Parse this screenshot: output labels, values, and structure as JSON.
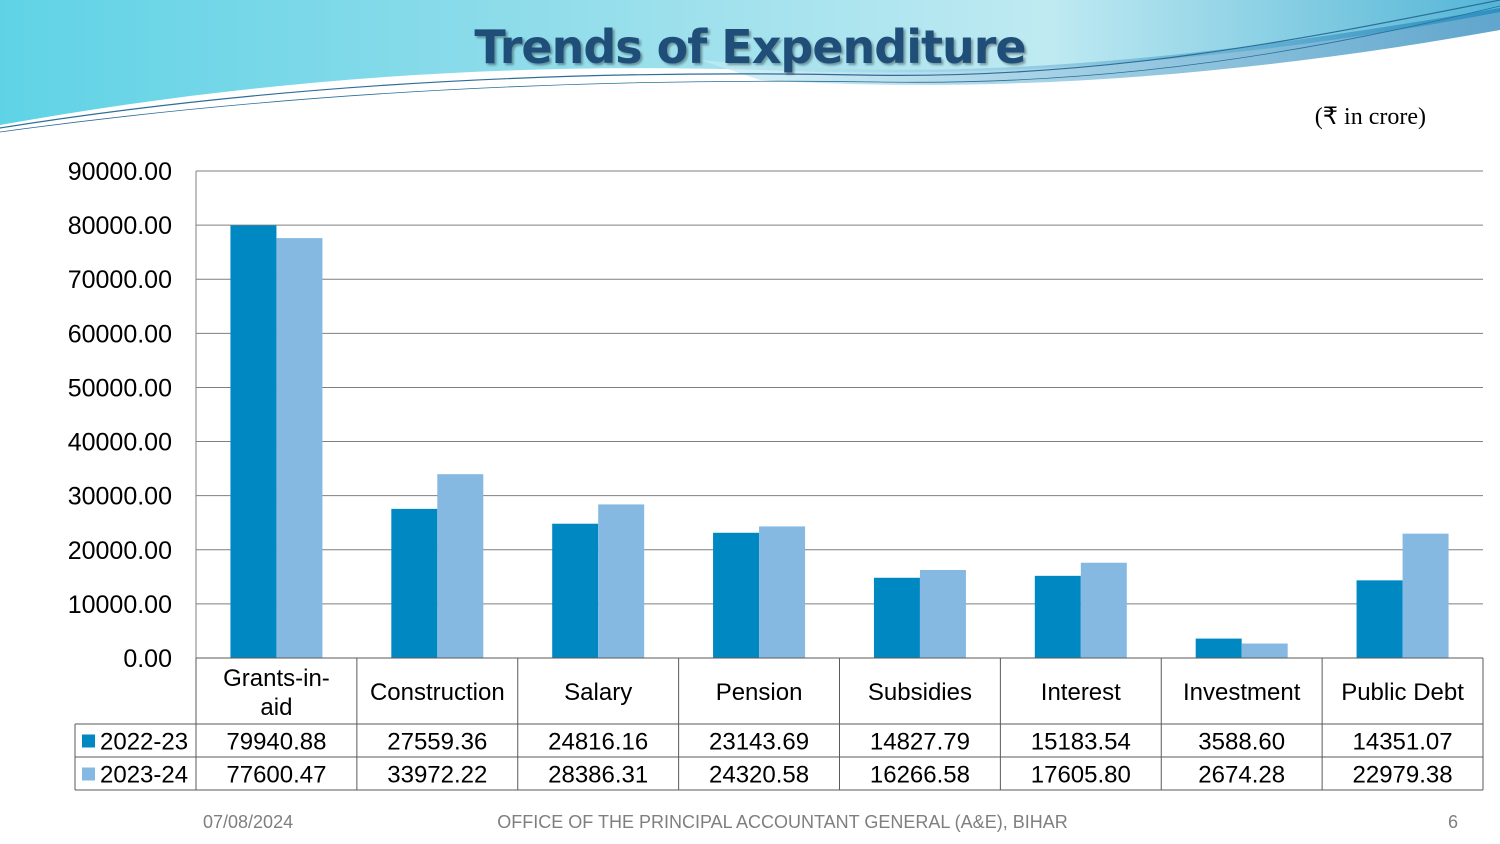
{
  "slide": {
    "title": "Trends of Expenditure",
    "unit_note": "(₹ in crore)",
    "footer_date": "07/08/2024",
    "footer_office": "OFFICE OF THE PRINCIPAL ACCOUNTANT GENERAL (A&E), BIHAR",
    "slide_number": "6"
  },
  "colors": {
    "series_2022": "#0088c2",
    "series_2023": "#85b9e2",
    "grid": "#7f7f7f",
    "title": "#1f4e79"
  },
  "chart_data": {
    "type": "bar",
    "title": "Trends of Expenditure",
    "categories": [
      [
        "Grants-in-",
        "aid"
      ],
      [
        "Construction"
      ],
      [
        "Salary"
      ],
      [
        "Pension"
      ],
      [
        "Subsidies"
      ],
      [
        "Interest"
      ],
      [
        "Investment"
      ],
      [
        "Public Debt"
      ]
    ],
    "series": [
      {
        "name": "2022-23",
        "values": [
          79940.88,
          27559.36,
          24816.16,
          23143.69,
          14827.79,
          15183.54,
          3588.6,
          14351.07
        ],
        "labels": [
          "79940.88",
          "27559.36",
          "24816.16",
          "23143.69",
          "14827.79",
          "15183.54",
          "3588.60",
          "14351.07"
        ]
      },
      {
        "name": "2023-24",
        "values": [
          77600.47,
          33972.22,
          28386.31,
          24320.58,
          16266.58,
          17605.8,
          2674.28,
          22979.38
        ],
        "labels": [
          "77600.47",
          "33972.22",
          "28386.31",
          "24320.58",
          "16266.58",
          "17605.80",
          "2674.28",
          "22979.38"
        ]
      }
    ],
    "ylim": [
      0,
      90000
    ],
    "yticks": [
      "0.00",
      "10000.00",
      "20000.00",
      "30000.00",
      "40000.00",
      "50000.00",
      "60000.00",
      "70000.00",
      "80000.00",
      "90000.00"
    ],
    "grid": true,
    "legend": "data-table-left",
    "data_table": true
  }
}
